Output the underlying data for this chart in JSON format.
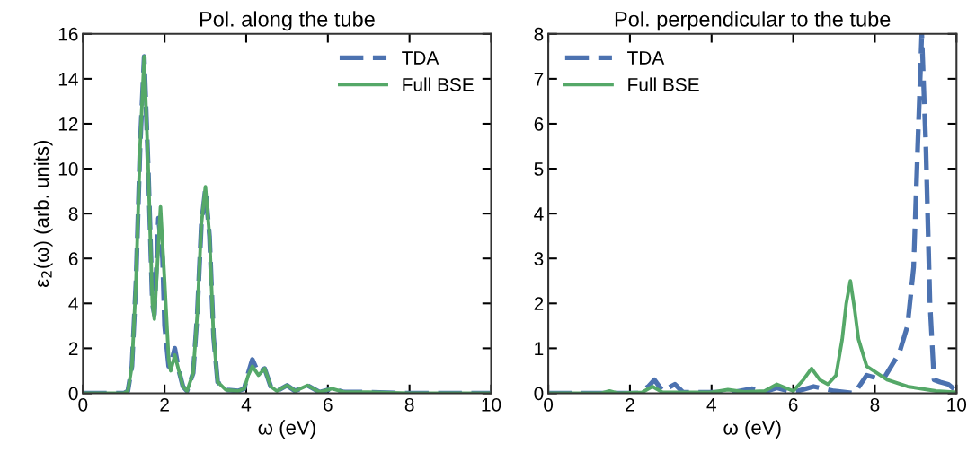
{
  "chart_data": [
    {
      "type": "line",
      "title": "Pol. along the tube",
      "xlabel": "ω (eV)",
      "ylabel": "ε$_{2}$(ω) (arb. units)",
      "xlim": [
        0,
        10
      ],
      "ylim": [
        0,
        16
      ],
      "xticks": [
        0,
        2,
        4,
        6,
        8,
        10
      ],
      "yticks": [
        0,
        2,
        4,
        6,
        8,
        10,
        12,
        14,
        16
      ],
      "grid": false,
      "legend": "top right",
      "marker": "none",
      "series": [
        {
          "name": "TDA",
          "color": "#4c72b0",
          "line_style": "dashed",
          "x": [
            0,
            0.8,
            1.0,
            1.1,
            1.2,
            1.3,
            1.4,
            1.5,
            1.6,
            1.7,
            1.75,
            1.85,
            1.95,
            2.0,
            2.1,
            2.15,
            2.25,
            2.35,
            2.45,
            2.55,
            2.7,
            2.8,
            2.9,
            3.0,
            3.1,
            3.2,
            3.3,
            3.5,
            3.8,
            3.95,
            4.05,
            4.15,
            4.3,
            4.45,
            4.6,
            4.75,
            5.0,
            5.2,
            5.5,
            5.8,
            6.1,
            6.4,
            7.0,
            8,
            10
          ],
          "values": [
            0,
            0,
            0,
            0.1,
            1.2,
            5,
            11,
            15,
            10,
            4,
            3.5,
            7.8,
            6,
            3,
            1.2,
            1.3,
            2,
            1.0,
            0.3,
            0.1,
            0.9,
            3.5,
            7.5,
            9.1,
            7,
            2.5,
            0.5,
            0.15,
            0.1,
            0.2,
            0.9,
            1.5,
            0.9,
            1.1,
            0.3,
            0.1,
            0.35,
            0.1,
            0.35,
            0.05,
            0.2,
            0.05,
            0.05,
            0,
            0
          ]
        },
        {
          "name": "Full BSE",
          "color": "#55a868",
          "line_style": "solid",
          "x": [
            0,
            0.8,
            1.0,
            1.1,
            1.2,
            1.3,
            1.4,
            1.5,
            1.6,
            1.7,
            1.75,
            1.9,
            2.0,
            2.1,
            2.15,
            2.25,
            2.35,
            2.45,
            2.55,
            2.7,
            2.8,
            2.9,
            3.0,
            3.1,
            3.2,
            3.3,
            3.5,
            3.8,
            3.95,
            4.05,
            4.15,
            4.3,
            4.45,
            4.6,
            4.75,
            5.0,
            5.2,
            5.5,
            5.8,
            6.1,
            6.4,
            7.0,
            8,
            10
          ],
          "values": [
            0,
            0,
            0,
            0.1,
            1.2,
            5,
            11,
            15,
            10,
            4,
            3.3,
            8.3,
            5,
            1.5,
            1.0,
            1.7,
            1.0,
            0.3,
            0.1,
            0.9,
            3.5,
            7.5,
            9.2,
            7,
            2.5,
            0.5,
            0.15,
            0.1,
            0.2,
            0.8,
            1.2,
            0.8,
            1.1,
            0.3,
            0.1,
            0.35,
            0.1,
            0.35,
            0.05,
            0.2,
            0.05,
            0.05,
            0,
            0
          ]
        }
      ]
    },
    {
      "type": "line",
      "title": "Pol. perpendicular to the tube",
      "xlabel": "ω (eV)",
      "xlim": [
        0,
        10
      ],
      "ylim": [
        0,
        8
      ],
      "xticks": [
        0,
        2,
        4,
        6,
        8,
        10
      ],
      "yticks": [
        0,
        1,
        2,
        3,
        4,
        5,
        6,
        7,
        8
      ],
      "grid": false,
      "legend": "top left",
      "marker": "none",
      "series": [
        {
          "name": "TDA",
          "color": "#4c72b0",
          "line_style": "dashed",
          "x": [
            0,
            2.2,
            2.45,
            2.6,
            2.8,
            3.1,
            3.3,
            4.5,
            5.0,
            5.3,
            5.6,
            6.0,
            6.5,
            7.0,
            7.5,
            7.8,
            8.2,
            8.6,
            8.8,
            8.95,
            9.05,
            9.15,
            9.25,
            9.35,
            9.45,
            9.6,
            9.8,
            10
          ],
          "values": [
            0,
            0,
            0.15,
            0.3,
            0.05,
            0.2,
            0.02,
            0.02,
            0.1,
            0.03,
            0.12,
            0.02,
            0.15,
            0.05,
            0,
            0.4,
            0.3,
            0.9,
            1.5,
            2.8,
            5.5,
            8,
            5.5,
            2,
            0.3,
            0.25,
            0.2,
            0.05
          ]
        },
        {
          "name": "Full BSE",
          "color": "#55a868",
          "line_style": "solid",
          "x": [
            0,
            1.3,
            1.5,
            1.7,
            2.3,
            2.55,
            2.8,
            4.0,
            4.4,
            4.8,
            5.3,
            5.6,
            6.0,
            6.25,
            6.45,
            6.65,
            6.85,
            7.05,
            7.2,
            7.3,
            7.4,
            7.5,
            7.6,
            7.8,
            8.3,
            8.8,
            9.5,
            10
          ],
          "values": [
            0,
            0,
            0.05,
            0,
            0.02,
            0.15,
            0.02,
            0.02,
            0.08,
            0.03,
            0.05,
            0.2,
            0.05,
            0.3,
            0.55,
            0.3,
            0.2,
            0.4,
            1.2,
            2,
            2.5,
            1.9,
            1.2,
            0.6,
            0.3,
            0.15,
            0.05,
            0.02
          ]
        }
      ]
    }
  ]
}
